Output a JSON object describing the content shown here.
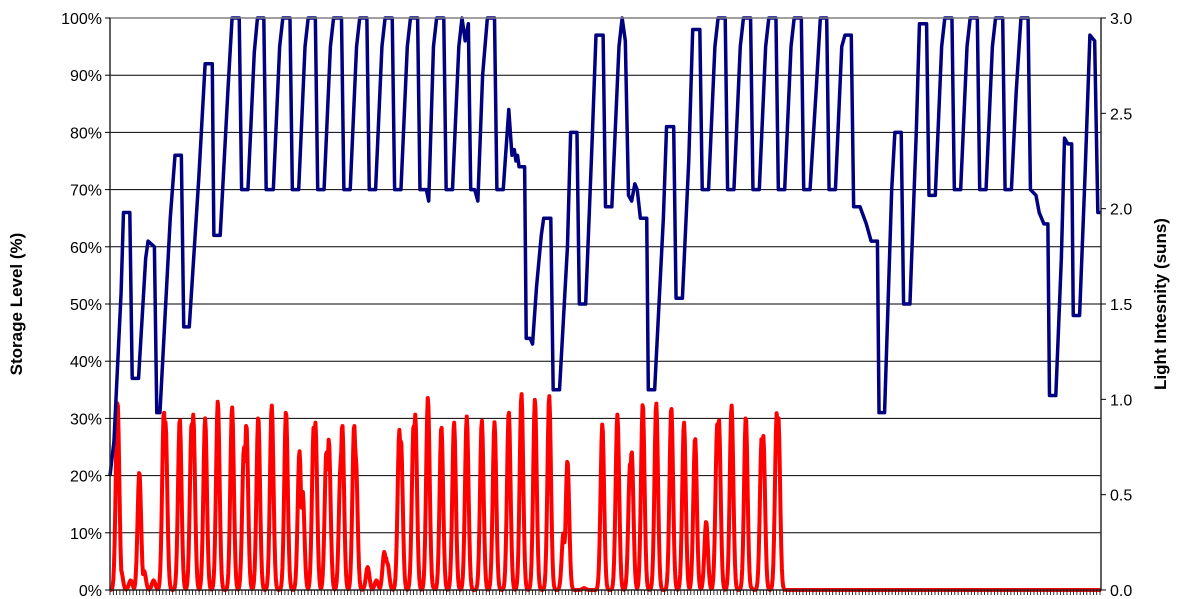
{
  "chart_data": {
    "type": "line",
    "title": "",
    "xlabel": "",
    "x_tick_labels_shown": false,
    "grid": true,
    "legend": "none",
    "y_left": {
      "label": "Storage Level (%)",
      "lim": [
        0,
        100
      ],
      "ticks": [
        "0%",
        "10%",
        "20%",
        "30%",
        "40%",
        "50%",
        "60%",
        "70%",
        "80%",
        "90%",
        "100%"
      ]
    },
    "y_right": {
      "label": "Light Intesnity (suns)",
      "lim": [
        0,
        3
      ],
      "ticks": [
        "0.0",
        "0.5",
        "1.0",
        "1.5",
        "2.0",
        "2.5",
        "3.0"
      ]
    },
    "series": [
      {
        "axis": "left",
        "color": "#000080",
        "points": [
          [
            0,
            20
          ],
          [
            0.5,
            26
          ],
          [
            1.4,
            52
          ],
          [
            1.7,
            66
          ],
          [
            2.5,
            66
          ],
          [
            2.8,
            37
          ],
          [
            3.6,
            37
          ],
          [
            4.5,
            58
          ],
          [
            4.8,
            61
          ],
          [
            5.6,
            60
          ],
          [
            5.9,
            31
          ],
          [
            6.3,
            31
          ],
          [
            7.6,
            65
          ],
          [
            8.2,
            76
          ],
          [
            9.0,
            76
          ],
          [
            9.3,
            46
          ],
          [
            10.0,
            46
          ],
          [
            11.2,
            72
          ],
          [
            12.0,
            92
          ],
          [
            12.9,
            92
          ],
          [
            13.1,
            62
          ],
          [
            13.9,
            62
          ],
          [
            14.9,
            88
          ],
          [
            15.4,
            100
          ],
          [
            16.3,
            100
          ],
          [
            16.6,
            70
          ],
          [
            17.4,
            70
          ],
          [
            18.2,
            94
          ],
          [
            18.6,
            100
          ],
          [
            19.4,
            100
          ],
          [
            19.7,
            70
          ],
          [
            20.6,
            70
          ],
          [
            21.4,
            95
          ],
          [
            21.8,
            100
          ],
          [
            22.7,
            100
          ],
          [
            23.0,
            70
          ],
          [
            23.8,
            70
          ],
          [
            24.6,
            95
          ],
          [
            25.0,
            100
          ],
          [
            25.9,
            100
          ],
          [
            26.2,
            70
          ],
          [
            27.0,
            70
          ],
          [
            27.8,
            95
          ],
          [
            28.2,
            100
          ],
          [
            29.2,
            100
          ],
          [
            29.5,
            70
          ],
          [
            30.3,
            70
          ],
          [
            31.1,
            95
          ],
          [
            31.5,
            100
          ],
          [
            32.4,
            100
          ],
          [
            32.7,
            70
          ],
          [
            33.5,
            70
          ],
          [
            34.3,
            95
          ],
          [
            34.7,
            100
          ],
          [
            35.6,
            100
          ],
          [
            35.9,
            70
          ],
          [
            36.7,
            70
          ],
          [
            37.5,
            95
          ],
          [
            37.9,
            100
          ],
          [
            38.8,
            100
          ],
          [
            39.1,
            70
          ],
          [
            39.9,
            70
          ],
          [
            40.2,
            68
          ],
          [
            40.8,
            95
          ],
          [
            41.2,
            100
          ],
          [
            42.1,
            100
          ],
          [
            42.4,
            70
          ],
          [
            43.2,
            70
          ],
          [
            44.0,
            95
          ],
          [
            44.4,
            100
          ],
          [
            44.8,
            96
          ],
          [
            45.2,
            99
          ],
          [
            45.5,
            70
          ],
          [
            46.0,
            70
          ],
          [
            46.4,
            68
          ],
          [
            47.0,
            90
          ],
          [
            47.6,
            100
          ],
          [
            48.5,
            100
          ],
          [
            48.8,
            70
          ],
          [
            49.6,
            70
          ],
          [
            50.3,
            84
          ],
          [
            50.7,
            76
          ],
          [
            51.0,
            77
          ],
          [
            51.2,
            75
          ],
          [
            51.4,
            76
          ],
          [
            51.6,
            74
          ],
          [
            52.3,
            74
          ],
          [
            52.5,
            44
          ],
          [
            53.0,
            44
          ],
          [
            53.3,
            43
          ],
          [
            53.8,
            53
          ],
          [
            54.4,
            62
          ],
          [
            54.7,
            65
          ],
          [
            55.6,
            65
          ],
          [
            55.9,
            35
          ],
          [
            56.7,
            35
          ],
          [
            57.7,
            60
          ],
          [
            58.1,
            80
          ],
          [
            58.9,
            80
          ],
          [
            59.2,
            50
          ],
          [
            60.0,
            50
          ],
          [
            60.8,
            78
          ],
          [
            61.3,
            97
          ],
          [
            62.2,
            97
          ],
          [
            62.5,
            67
          ],
          [
            63.3,
            67
          ],
          [
            64.2,
            95
          ],
          [
            64.6,
            100
          ],
          [
            65.0,
            96
          ],
          [
            65.4,
            69
          ],
          [
            65.8,
            68
          ],
          [
            66.2,
            71
          ],
          [
            66.5,
            70
          ],
          [
            66.9,
            65
          ],
          [
            67.7,
            65
          ],
          [
            67.9,
            35
          ],
          [
            68.7,
            35
          ],
          [
            69.8,
            65
          ],
          [
            70.2,
            81
          ],
          [
            71.1,
            81
          ],
          [
            71.4,
            51
          ],
          [
            72.2,
            51
          ],
          [
            73.0,
            75
          ],
          [
            73.5,
            98
          ],
          [
            74.4,
            98
          ],
          [
            74.7,
            70
          ],
          [
            75.5,
            70
          ],
          [
            76.3,
            95
          ],
          [
            76.7,
            100
          ],
          [
            77.6,
            100
          ],
          [
            77.9,
            70
          ],
          [
            78.7,
            70
          ],
          [
            79.5,
            95
          ],
          [
            79.9,
            100
          ],
          [
            80.8,
            100
          ],
          [
            81.1,
            70
          ],
          [
            81.9,
            70
          ],
          [
            82.7,
            95
          ],
          [
            83.1,
            100
          ],
          [
            84.0,
            100
          ],
          [
            84.3,
            70
          ],
          [
            85.1,
            70
          ],
          [
            85.9,
            95
          ],
          [
            86.3,
            100
          ],
          [
            87.2,
            100
          ],
          [
            87.5,
            70
          ],
          [
            88.3,
            70
          ],
          [
            89.1,
            88
          ],
          [
            89.6,
            100
          ],
          [
            90.4,
            100
          ],
          [
            90.7,
            70
          ],
          [
            91.5,
            70
          ],
          [
            92.3,
            95
          ],
          [
            92.7,
            97
          ],
          [
            93.5,
            97
          ],
          [
            93.8,
            67
          ],
          [
            94.6,
            67
          ],
          [
            95.4,
            64
          ],
          [
            96.0,
            61
          ],
          [
            96.8,
            61
          ],
          [
            97.0,
            31
          ],
          [
            97.7,
            31
          ],
          [
            98.6,
            70
          ],
          [
            99.0,
            80
          ],
          [
            99.8,
            80
          ],
          [
            100.1,
            50
          ],
          [
            100.9,
            50
          ],
          [
            101.7,
            80
          ],
          [
            102.1,
            99
          ],
          [
            103.0,
            99
          ],
          [
            103.3,
            69
          ],
          [
            104.1,
            69
          ],
          [
            104.9,
            95
          ],
          [
            105.3,
            100
          ],
          [
            106.2,
            100
          ],
          [
            106.5,
            70
          ],
          [
            107.3,
            70
          ],
          [
            108.1,
            95
          ],
          [
            108.5,
            100
          ],
          [
            109.4,
            100
          ],
          [
            109.7,
            70
          ],
          [
            110.5,
            70
          ],
          [
            111.3,
            95
          ],
          [
            111.7,
            100
          ],
          [
            112.6,
            100
          ],
          [
            112.9,
            70
          ],
          [
            113.7,
            70
          ],
          [
            114.3,
            87
          ],
          [
            114.9,
            100
          ],
          [
            115.8,
            100
          ],
          [
            116.1,
            70
          ],
          [
            116.8,
            69
          ],
          [
            117.2,
            66
          ],
          [
            117.5,
            65
          ],
          [
            117.8,
            64
          ],
          [
            118.3,
            64
          ],
          [
            118.5,
            34
          ],
          [
            119.3,
            34
          ],
          [
            120.0,
            58
          ],
          [
            120.4,
            79
          ],
          [
            120.8,
            78
          ],
          [
            121.3,
            78
          ],
          [
            121.5,
            48
          ],
          [
            122.3,
            48
          ],
          [
            123.0,
            73
          ],
          [
            123.6,
            97
          ],
          [
            124.2,
            96
          ],
          [
            124.6,
            66
          ],
          [
            125.0,
            66
          ]
        ]
      },
      {
        "axis": "right",
        "color": "#ff0000",
        "peaks": [
          [
            0.95,
            0.99
          ],
          [
            1.4,
            0.1
          ],
          [
            2.6,
            0.05
          ],
          [
            3.7,
            0.62
          ],
          [
            4.3,
            0.1
          ],
          [
            5.5,
            0.05
          ],
          [
            6.8,
            0.94
          ],
          [
            7.0,
            0.88
          ],
          [
            8.8,
            0.9
          ],
          [
            10.3,
            0.88
          ],
          [
            10.5,
            0.92
          ],
          [
            12.0,
            0.9
          ],
          [
            13.6,
            0.99
          ],
          [
            15.4,
            0.96
          ],
          [
            16.9,
            0.75
          ],
          [
            17.2,
            0.87
          ],
          [
            18.7,
            0.91
          ],
          [
            20.4,
            0.97
          ],
          [
            22.2,
            0.94
          ],
          [
            23.9,
            0.73
          ],
          [
            24.3,
            0.52
          ],
          [
            25.7,
            0.86
          ],
          [
            25.9,
            0.88
          ],
          [
            27.3,
            0.73
          ],
          [
            27.6,
            0.79
          ],
          [
            29.1,
            0.67
          ],
          [
            29.3,
            0.87
          ],
          [
            30.8,
            0.87
          ],
          [
            31.0,
            0.7
          ],
          [
            32.5,
            0.12
          ],
          [
            33.6,
            0.05
          ],
          [
            34.6,
            0.2
          ],
          [
            34.8,
            0.17
          ],
          [
            35.0,
            0.14
          ],
          [
            36.5,
            0.84
          ],
          [
            36.7,
            0.79
          ],
          [
            38.3,
            0.87
          ],
          [
            38.5,
            0.92
          ],
          [
            40.1,
            1.01
          ],
          [
            40.6,
            0.02
          ],
          [
            41.8,
            0.86
          ],
          [
            43.4,
            0.88
          ],
          [
            45.0,
            0.91
          ],
          [
            46.9,
            0.89
          ],
          [
            48.5,
            0.88
          ],
          [
            50.3,
            0.94
          ],
          [
            51.9,
            1.03
          ],
          [
            53.6,
            1.0
          ],
          [
            55.4,
            1.02
          ],
          [
            57.2,
            0.3
          ],
          [
            57.7,
            0.68
          ],
          [
            59.8,
            0.01
          ],
          [
            62.1,
            0.87
          ],
          [
            64.0,
            0.92
          ],
          [
            65.6,
            0.66
          ],
          [
            65.8,
            0.73
          ],
          [
            67.2,
            0.98
          ],
          [
            68.9,
            0.98
          ],
          [
            70.8,
            0.96
          ],
          [
            72.4,
            0.88
          ],
          [
            73.8,
            0.8
          ],
          [
            75.2,
            0.36
          ],
          [
            76.6,
            0.87
          ],
          [
            76.8,
            0.9
          ],
          [
            78.4,
            0.97
          ],
          [
            80.2,
            0.91
          ],
          [
            80.7,
            0.02
          ],
          [
            82.2,
            0.8
          ],
          [
            82.4,
            0.81
          ],
          [
            84.1,
            0.93
          ],
          [
            84.3,
            0.91
          ]
        ]
      }
    ]
  }
}
